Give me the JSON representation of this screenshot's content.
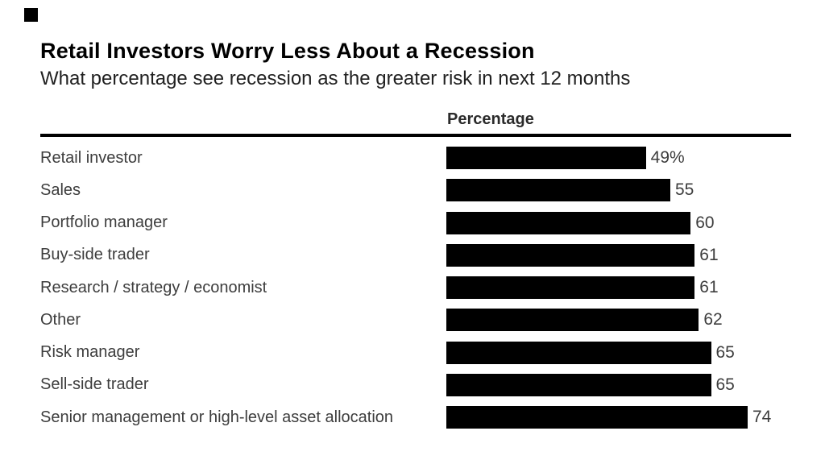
{
  "brand": {
    "logo_square_color": "#000000"
  },
  "chart_data": {
    "type": "bar",
    "orientation": "horizontal",
    "title": "Retail Investors Worry Less About a Recession",
    "subtitle": "What percentage see recession as the greater risk in next 12 months",
    "column_header": "Percentage",
    "categories": [
      "Retail investor",
      "Sales",
      "Portfolio manager",
      "Buy-side trader",
      "Research / strategy / economist",
      "Other",
      "Risk manager",
      "Sell-side trader",
      "Senior management or high-level asset allocation"
    ],
    "values": [
      49,
      55,
      60,
      61,
      61,
      62,
      65,
      65,
      74
    ],
    "value_labels": [
      "49%",
      "55",
      "60",
      "61",
      "61",
      "62",
      "65",
      "65",
      "74"
    ],
    "xlim": [
      0,
      74
    ],
    "bar_color": "#000000",
    "grid": false,
    "legend": false
  },
  "colors": {
    "title_text": "#000000",
    "subtitle_text": "#212121",
    "header_text": "#2b2b2b",
    "label_text": "#3d3d3d",
    "rule": "#000000",
    "background": "#ffffff"
  }
}
